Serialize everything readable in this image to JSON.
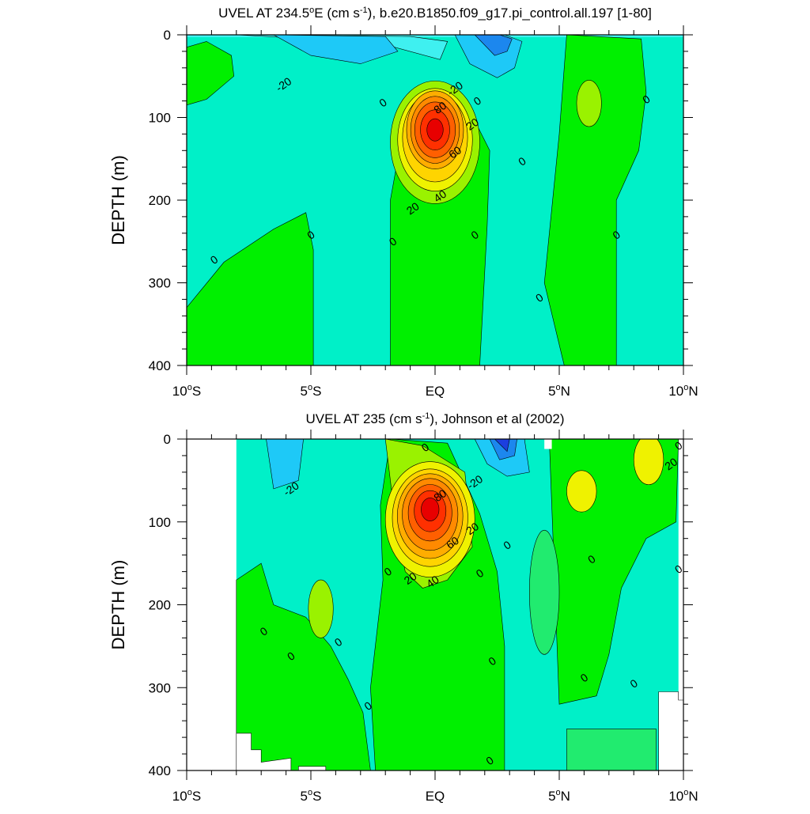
{
  "chart_data": [
    {
      "type": "contour",
      "title": "UVEL AT 234.5°E (cm s-1), b.e20.B1850.f09_g17.pi_control.all.197 [1-80]",
      "title_parts": {
        "a": "UVEL AT 234.5",
        "deg": "o",
        "b": "E (cm s",
        "sup": "-1",
        "c": "), b.e20.B1850.f09_g17.pi_control.all.197 [1-80]"
      },
      "ylabel": "DEPTH (m)",
      "xlim": [
        -10,
        10
      ],
      "ylim": [
        400,
        0
      ],
      "x_ticks": [
        {
          "v": -10,
          "label": "10",
          "deg": "o",
          "hem": "S"
        },
        {
          "v": -5,
          "label": "5",
          "deg": "o",
          "hem": "S"
        },
        {
          "v": 0,
          "label": "EQ",
          "deg": "",
          "hem": ""
        },
        {
          "v": 5,
          "label": "5",
          "deg": "o",
          "hem": "N"
        },
        {
          "v": 10,
          "label": "10",
          "deg": "o",
          "hem": "N"
        }
      ],
      "y_ticks": [
        0,
        100,
        200,
        300,
        400
      ],
      "contour_interval": 10,
      "fill_colors": [
        "#1c3fdf",
        "#1c87ee",
        "#1ec9f7",
        "#3ff0f0",
        "#00f0c8",
        "#21eb6f",
        "#00f000",
        "#9af200",
        "#eff200",
        "#ffd400",
        "#ffad00",
        "#ff8a00",
        "#ff5f00",
        "#ff3000",
        "#e80000"
      ],
      "core": {
        "lat": 0,
        "depth": 115,
        "max": 90
      },
      "contour_labels": [
        {
          "lat": -6.1,
          "depth": 60,
          "text": "-20"
        },
        {
          "lat": 0.8,
          "depth": 65,
          "text": "-20"
        },
        {
          "lat": -2.1,
          "depth": 82,
          "text": "0"
        },
        {
          "lat": 1.7,
          "depth": 80,
          "text": "0"
        },
        {
          "lat": 0.2,
          "depth": 88,
          "text": "80"
        },
        {
          "lat": 1.5,
          "depth": 108,
          "text": "20"
        },
        {
          "lat": 0.8,
          "depth": 142,
          "text": "60"
        },
        {
          "lat": 0.2,
          "depth": 195,
          "text": "40"
        },
        {
          "lat": -0.9,
          "depth": 210,
          "text": "20"
        },
        {
          "lat": 3.5,
          "depth": 153,
          "text": "0"
        },
        {
          "lat": 8.5,
          "depth": 78,
          "text": "0"
        },
        {
          "lat": -5.0,
          "depth": 242,
          "text": "0"
        },
        {
          "lat": -1.7,
          "depth": 250,
          "text": "0"
        },
        {
          "lat": 1.6,
          "depth": 242,
          "text": "0"
        },
        {
          "lat": 7.3,
          "depth": 242,
          "text": "0"
        },
        {
          "lat": -8.9,
          "depth": 272,
          "text": "0"
        },
        {
          "lat": 4.2,
          "depth": 318,
          "text": "0"
        }
      ]
    },
    {
      "type": "contour",
      "title": "UVEL AT 235 (cm s-1), Johnson et al (2002)",
      "title_parts": {
        "a": "UVEL AT 235",
        "deg": "",
        "b": " (cm s",
        "sup": "-1",
        "c": "), Johnson et al (2002)"
      },
      "ylabel": "DEPTH (m)",
      "xlim": [
        -10,
        10
      ],
      "ylim": [
        400,
        0
      ],
      "x_ticks": [
        {
          "v": -10,
          "label": "10",
          "deg": "o",
          "hem": "S"
        },
        {
          "v": -5,
          "label": "5",
          "deg": "o",
          "hem": "S"
        },
        {
          "v": 0,
          "label": "EQ",
          "deg": "",
          "hem": ""
        },
        {
          "v": 5,
          "label": "5",
          "deg": "o",
          "hem": "N"
        },
        {
          "v": 10,
          "label": "10",
          "deg": "o",
          "hem": "N"
        }
      ],
      "y_ticks": [
        0,
        100,
        200,
        300,
        400
      ],
      "contour_interval": 10,
      "data_extent": {
        "lat": [
          -8,
          9.8
        ]
      },
      "fill_colors": [
        "#1c3fdf",
        "#1c87ee",
        "#1ec9f7",
        "#3ff0f0",
        "#00f0c8",
        "#21eb6f",
        "#00f000",
        "#9af200",
        "#eff200",
        "#ffd400",
        "#ffad00",
        "#ff8a00",
        "#ff5f00",
        "#ff3000",
        "#e80000"
      ],
      "core": {
        "lat": -0.2,
        "depth": 85,
        "max": 90
      },
      "contour_labels": [
        {
          "lat": -5.8,
          "depth": 60,
          "text": "-20"
        },
        {
          "lat": -0.4,
          "depth": 10,
          "text": "0"
        },
        {
          "lat": 0.2,
          "depth": 68,
          "text": "80"
        },
        {
          "lat": 1.6,
          "depth": 52,
          "text": "-20"
        },
        {
          "lat": 1.5,
          "depth": 108,
          "text": "20"
        },
        {
          "lat": 0.7,
          "depth": 125,
          "text": "60"
        },
        {
          "lat": -0.1,
          "depth": 172,
          "text": "40"
        },
        {
          "lat": -1.0,
          "depth": 168,
          "text": "20"
        },
        {
          "lat": 9.5,
          "depth": 30,
          "text": "20"
        },
        {
          "lat": -1.9,
          "depth": 160,
          "text": "0"
        },
        {
          "lat": 1.8,
          "depth": 162,
          "text": "0"
        },
        {
          "lat": 2.9,
          "depth": 128,
          "text": "0"
        },
        {
          "lat": 6.3,
          "depth": 145,
          "text": "0"
        },
        {
          "lat": 9.8,
          "depth": 157,
          "text": "0"
        },
        {
          "lat": 9.8,
          "depth": 8,
          "text": "0"
        },
        {
          "lat": -6.9,
          "depth": 232,
          "text": "0"
        },
        {
          "lat": -5.8,
          "depth": 262,
          "text": "0"
        },
        {
          "lat": -3.9,
          "depth": 245,
          "text": "0"
        },
        {
          "lat": 2.3,
          "depth": 268,
          "text": "0"
        },
        {
          "lat": 6.0,
          "depth": 288,
          "text": "0"
        },
        {
          "lat": 8.0,
          "depth": 295,
          "text": "0"
        },
        {
          "lat": -2.7,
          "depth": 322,
          "text": "0"
        },
        {
          "lat": 2.2,
          "depth": 388,
          "text": "0"
        }
      ]
    }
  ]
}
